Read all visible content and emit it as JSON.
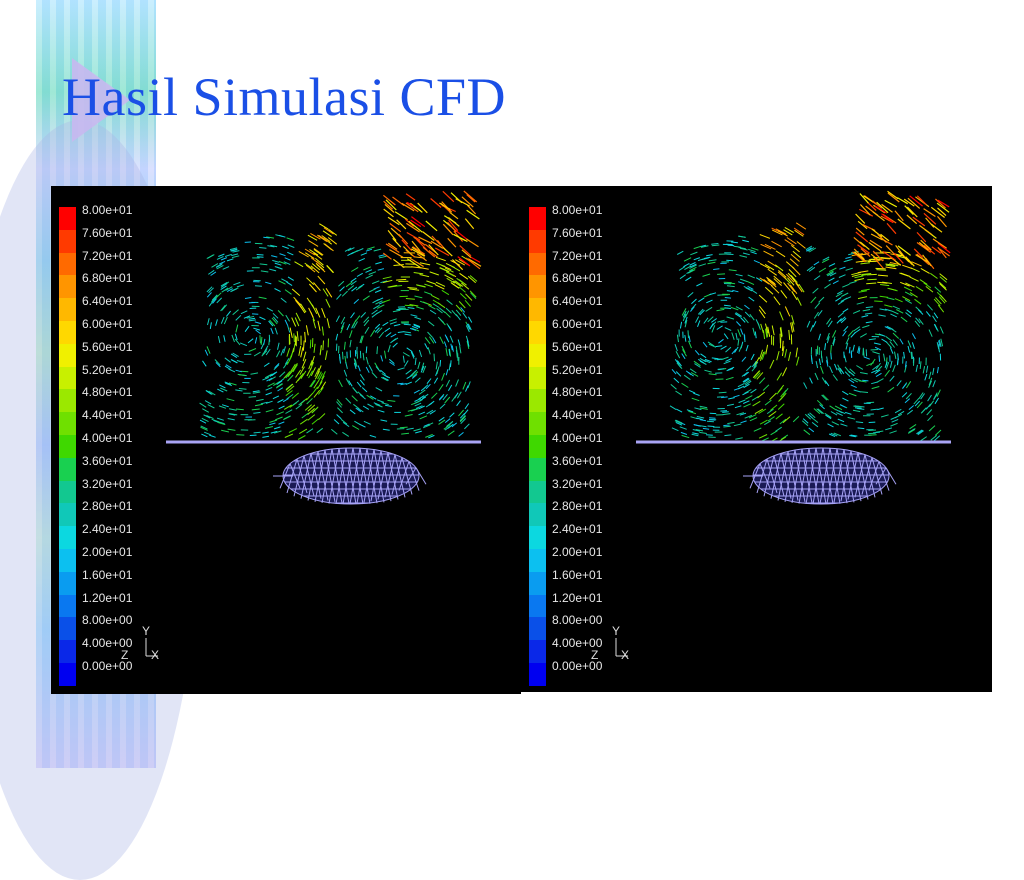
{
  "slide": {
    "title": "Hasil Simulasi CFD",
    "decor_colors": {
      "title": "#1a4fe6",
      "arrow": "#c8b8f0"
    }
  },
  "legend": {
    "labels": [
      "8.00e+01",
      "7.60e+01",
      "7.20e+01",
      "6.80e+01",
      "6.40e+01",
      "6.00e+01",
      "5.60e+01",
      "5.20e+01",
      "4.80e+01",
      "4.40e+01",
      "4.00e+01",
      "3.60e+01",
      "3.20e+01",
      "2.80e+01",
      "2.40e+01",
      "2.00e+01",
      "1.60e+01",
      "1.20e+01",
      "8.00e+00",
      "4.00e+00",
      "0.00e+00"
    ],
    "colors": [
      "#ff0000",
      "#ff3a00",
      "#ff6a00",
      "#ff9500",
      "#ffb800",
      "#ffd800",
      "#f0f000",
      "#c8f000",
      "#9be800",
      "#6fe000",
      "#3fd800",
      "#19d050",
      "#12c890",
      "#10c8b8",
      "#0cd8e0",
      "#0cc0f0",
      "#0a9cf0",
      "#0a78f0",
      "#0a50e8",
      "#0a28e8",
      "#0000f0"
    ]
  },
  "axes": {
    "y": "Y",
    "z": "Z",
    "x": "X"
  },
  "panels": [
    {
      "id": "left"
    },
    {
      "id": "right"
    }
  ]
}
